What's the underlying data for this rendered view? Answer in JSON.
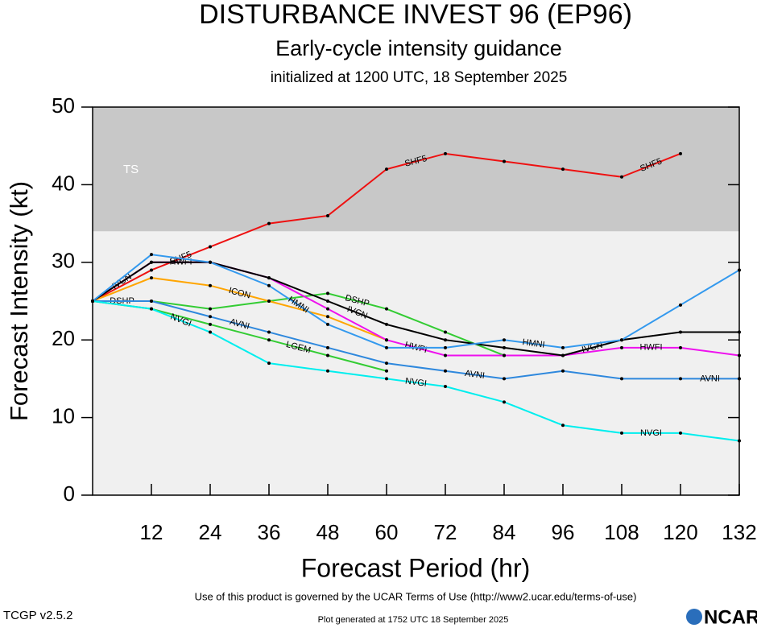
{
  "chart_data": {
    "type": "line",
    "title": "DISTURBANCE INVEST 96 (EP96)",
    "subtitle": "Early-cycle intensity guidance",
    "initialized": "initialized at 1200 UTC, 18 September 2025",
    "y_label": "Forecast Intensity (kt)",
    "x_label": "Forecast Period (hr)",
    "x": [
      0,
      12,
      24,
      36,
      48,
      60,
      72,
      84,
      96,
      108,
      120,
      132
    ],
    "xlim": [
      0,
      132
    ],
    "xticks": [
      12,
      24,
      36,
      48,
      60,
      72,
      84,
      96,
      108,
      120,
      132
    ],
    "ylim": [
      0,
      50
    ],
    "yticks": [
      0,
      10,
      20,
      30,
      40,
      50
    ],
    "background": "#f0f0f0",
    "bands": [
      {
        "label": "TS",
        "from": 34,
        "to": 50,
        "color": "#c8c8c8"
      }
    ],
    "series": [
      {
        "name": "SHF5",
        "color": "#ee1111",
        "values": [
          25,
          29,
          32,
          35,
          36,
          42,
          44,
          43,
          42,
          41,
          44,
          null
        ]
      },
      {
        "name": "DSHP",
        "color": "#33cc33",
        "values": [
          25,
          25,
          24,
          25,
          26,
          24,
          21,
          18,
          null,
          null,
          null,
          null
        ]
      },
      {
        "name": "LGEM",
        "color": "#33cc33",
        "values": [
          25,
          24,
          22,
          20,
          18,
          16,
          null,
          null,
          null,
          null,
          null,
          null
        ]
      },
      {
        "name": "ICON",
        "color": "#ffa500",
        "values": [
          25,
          28,
          27,
          25,
          23,
          20,
          null,
          null,
          null,
          null,
          null,
          null
        ]
      },
      {
        "name": "HWFI",
        "color": "#ee11ee",
        "values": [
          25,
          30,
          30,
          28,
          24,
          20,
          18,
          18,
          18,
          19,
          19,
          18
        ]
      },
      {
        "name": "IVCN",
        "color": "#000000",
        "values": [
          25,
          30,
          30,
          28,
          25,
          22,
          20,
          19,
          18,
          20,
          21,
          21
        ]
      },
      {
        "name": "HMNI",
        "color": "#3399ee",
        "values": [
          25,
          31,
          30,
          27,
          22,
          19,
          19,
          20,
          19,
          20,
          24.5,
          29
        ]
      },
      {
        "name": "AVNI",
        "color": "#2e88dd",
        "values": [
          25,
          25,
          23,
          21,
          19,
          17,
          16,
          15,
          16,
          15,
          15,
          15
        ]
      },
      {
        "name": "NVGI",
        "color": "#00eeee",
        "values": [
          25,
          24,
          21,
          17,
          16,
          15,
          14,
          12,
          9,
          8,
          8,
          7
        ]
      }
    ],
    "terms": "Use of this product is governed by the UCAR Terms of Use (http://www2.ucar.edu/terms-of-use)",
    "version": "TCGP v2.5.2",
    "generated": "Plot generated at 1752 UTC   18 September 2025",
    "logo": "NCAR"
  }
}
